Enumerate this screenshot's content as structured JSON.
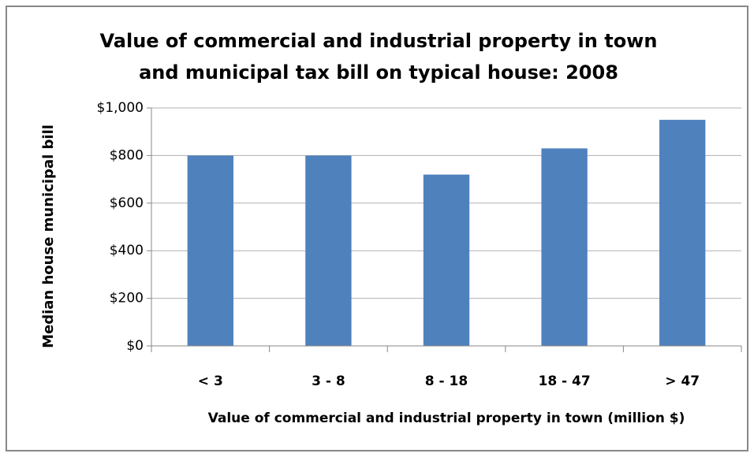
{
  "chart_data": {
    "type": "bar",
    "title": "Value of commercial and industrial property in town and municipal tax bill on typical house: 2008",
    "x_label": "Value of commercial and industrial property in town (million $)",
    "y_label": "Median house municipal bill",
    "categories": [
      "< 3",
      "3 - 8",
      "8 - 18",
      "18 - 47",
      "> 47"
    ],
    "values": [
      800,
      800,
      720,
      830,
      950
    ],
    "color": "#4f81bd",
    "ylim": [
      0,
      1000
    ],
    "yticks": [
      {
        "value": 0,
        "label": "$0"
      },
      {
        "value": 200,
        "label": "$200"
      },
      {
        "value": 400,
        "label": "$400"
      },
      {
        "value": 600,
        "label": "$600"
      },
      {
        "value": 800,
        "label": "$800"
      },
      {
        "value": 1000,
        "label": "$1,000"
      }
    ],
    "grid": true
  }
}
